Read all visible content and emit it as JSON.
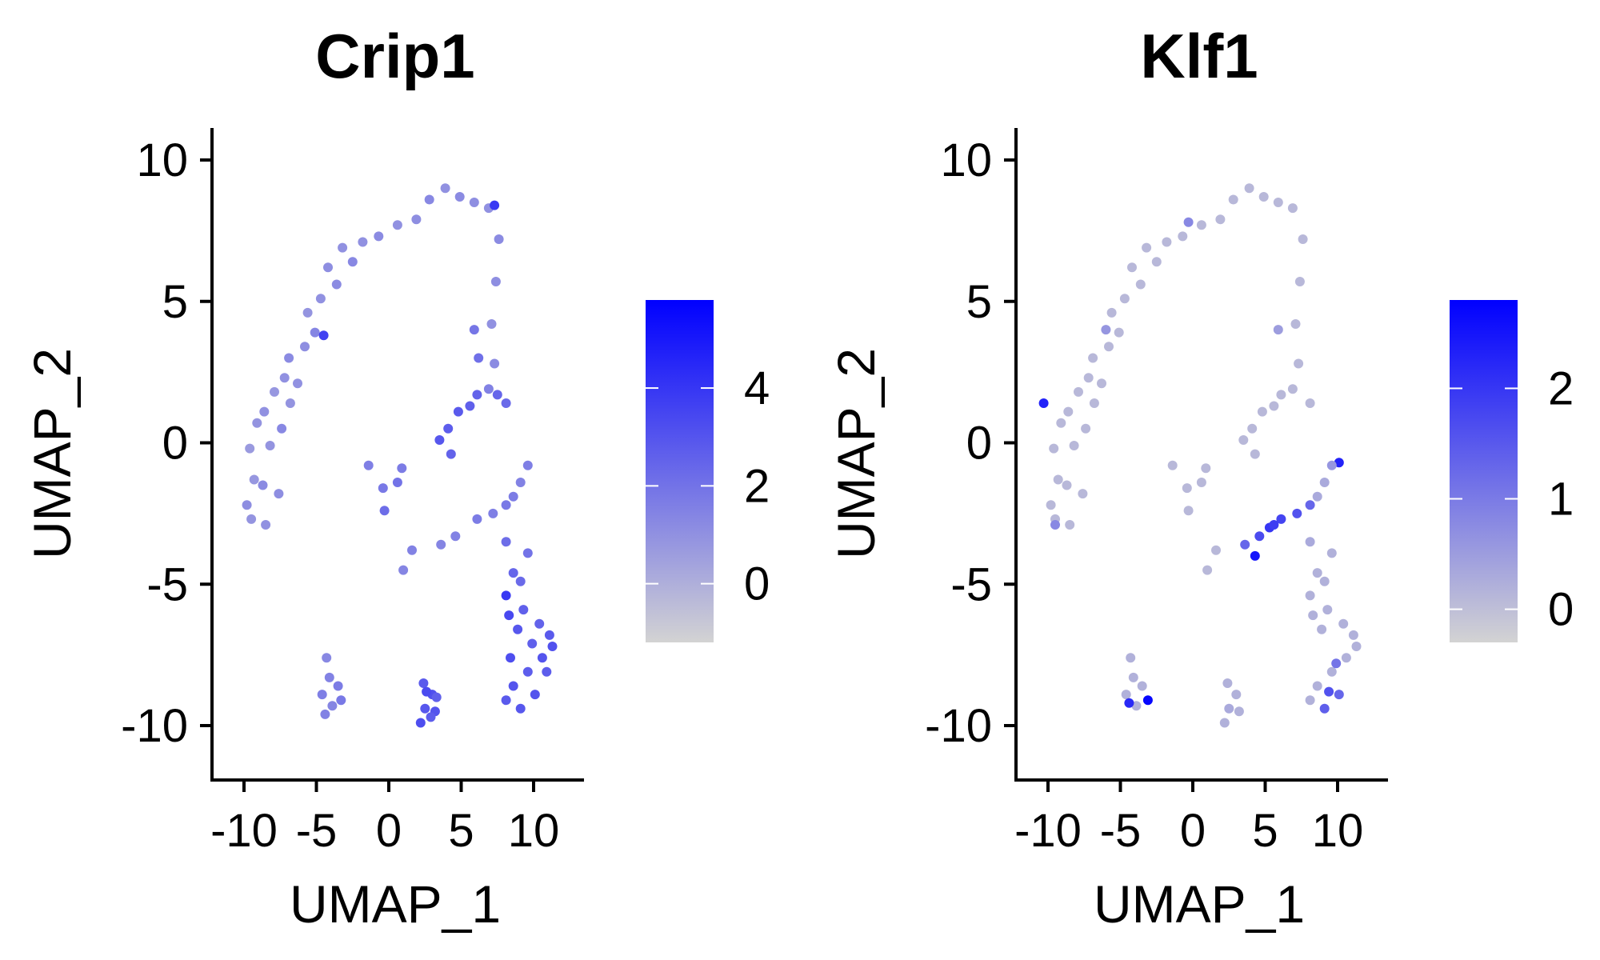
{
  "chart_data": [
    {
      "type": "scatter",
      "title": "Crip1",
      "xlabel": "UMAP_1",
      "ylabel": "UMAP_2",
      "xlim": [
        -12,
        13
      ],
      "ylim": [
        -12,
        11
      ],
      "xticks": [
        -10,
        -5,
        0,
        5,
        10
      ],
      "xtick_labels": [
        "-10",
        "-5",
        "0",
        "5",
        "10"
      ],
      "yticks": [
        -10,
        -5,
        0,
        5,
        10
      ],
      "ytick_labels": [
        "-10",
        "-5",
        "0",
        "5",
        "10"
      ],
      "grid": false,
      "legend": "right",
      "colorbar": {
        "low_color": "#d3d3d3",
        "high_color": "#0000ff",
        "range": [
          -1.2,
          5.8
        ],
        "ticks": [
          0,
          2,
          4
        ],
        "tick_labels": [
          "0",
          "2",
          "4"
        ]
      },
      "points": [
        [
          -9.5,
          -2.7,
          0.9
        ],
        [
          -9.8,
          -2.2,
          1.1
        ],
        [
          -9.3,
          -1.3,
          0.8
        ],
        [
          -9.6,
          -0.2,
          0.7
        ],
        [
          -9.1,
          0.7,
          0.9
        ],
        [
          -8.5,
          -2.9,
          1.0
        ],
        [
          -8.7,
          -1.5,
          1.2
        ],
        [
          -8.2,
          -0.1,
          0.9
        ],
        [
          -8.6,
          1.1,
          1.0
        ],
        [
          -7.9,
          1.8,
          0.8
        ],
        [
          -7.6,
          -1.8,
          1.1
        ],
        [
          -7.4,
          0.5,
          1.3
        ],
        [
          -7.2,
          2.3,
          1.0
        ],
        [
          -6.8,
          1.4,
          0.9
        ],
        [
          -6.9,
          3.0,
          1.2
        ],
        [
          -6.3,
          2.1,
          1.0
        ],
        [
          -5.8,
          3.4,
          1.1
        ],
        [
          -5.6,
          4.6,
          0.9
        ],
        [
          -5.1,
          3.9,
          1.4
        ],
        [
          -4.7,
          5.1,
          1.0
        ],
        [
          -4.5,
          3.8,
          3.6
        ],
        [
          -4.2,
          6.2,
          1.1
        ],
        [
          -3.6,
          5.6,
          1.2
        ],
        [
          -3.2,
          6.9,
          1.0
        ],
        [
          -2.5,
          6.4,
          1.3
        ],
        [
          -1.8,
          7.1,
          1.0
        ],
        [
          -0.7,
          7.3,
          1.2
        ],
        [
          0.6,
          7.7,
          1.0
        ],
        [
          1.9,
          7.9,
          1.1
        ],
        [
          2.8,
          8.6,
          1.3
        ],
        [
          3.9,
          9.0,
          1.0
        ],
        [
          4.9,
          8.7,
          1.2
        ],
        [
          5.9,
          8.5,
          1.1
        ],
        [
          6.9,
          8.3,
          1.0
        ],
        [
          7.3,
          8.4,
          3.9
        ],
        [
          7.6,
          7.2,
          1.2
        ],
        [
          7.4,
          5.7,
          1.1
        ],
        [
          7.1,
          4.2,
          1.0
        ],
        [
          7.3,
          2.8,
          1.2
        ],
        [
          6.9,
          1.9,
          1.5
        ],
        [
          5.6,
          1.3,
          2.6
        ],
        [
          4.8,
          1.1,
          2.8
        ],
        [
          6.1,
          1.7,
          2.5
        ],
        [
          4.1,
          0.5,
          2.7
        ],
        [
          3.5,
          0.1,
          2.9
        ],
        [
          4.3,
          -0.4,
          2.5
        ],
        [
          8.1,
          1.4,
          2.3
        ],
        [
          7.5,
          1.7,
          2.4
        ],
        [
          5.9,
          4.0,
          1.9
        ],
        [
          6.2,
          3.0,
          2.1
        ],
        [
          -1.4,
          -0.8,
          1.6
        ],
        [
          -0.4,
          -1.6,
          1.8
        ],
        [
          0.6,
          -1.4,
          2.0
        ],
        [
          -0.3,
          -2.4,
          2.2
        ],
        [
          0.9,
          -0.9,
          1.7
        ],
        [
          4.6,
          -3.3,
          1.5
        ],
        [
          6.1,
          -2.7,
          1.7
        ],
        [
          7.2,
          -2.5,
          1.6
        ],
        [
          3.6,
          -3.6,
          1.4
        ],
        [
          8.1,
          -2.2,
          1.8
        ],
        [
          9.6,
          -0.8,
          1.6
        ],
        [
          9.1,
          -1.4,
          1.5
        ],
        [
          8.6,
          -1.9,
          1.7
        ],
        [
          1.6,
          -3.8,
          1.5
        ],
        [
          1.0,
          -4.5,
          1.4
        ],
        [
          8.6,
          -4.6,
          2.4
        ],
        [
          8.1,
          -5.4,
          3.9
        ],
        [
          8.3,
          -6.1,
          3.4
        ],
        [
          8.9,
          -6.6,
          2.9
        ],
        [
          9.3,
          -5.9,
          2.6
        ],
        [
          10.4,
          -6.4,
          2.5
        ],
        [
          11.1,
          -6.8,
          2.8
        ],
        [
          10.6,
          -7.6,
          3.0
        ],
        [
          11.3,
          -7.2,
          3.1
        ],
        [
          9.6,
          -8.1,
          2.7
        ],
        [
          8.6,
          -8.6,
          3.0
        ],
        [
          8.1,
          -9.1,
          2.8
        ],
        [
          9.1,
          -9.4,
          2.9
        ],
        [
          10.1,
          -8.9,
          3.0
        ],
        [
          8.4,
          -7.6,
          3.2
        ],
        [
          9.1,
          -4.9,
          2.3
        ],
        [
          9.6,
          -3.9,
          2.0
        ],
        [
          8.1,
          -3.5,
          2.2
        ],
        [
          9.9,
          -7.1,
          2.6
        ],
        [
          10.9,
          -8.1,
          2.7
        ],
        [
          -4.3,
          -7.6,
          1.3
        ],
        [
          -4.1,
          -8.3,
          1.5
        ],
        [
          -3.5,
          -8.6,
          1.7
        ],
        [
          -4.6,
          -8.9,
          1.6
        ],
        [
          -3.9,
          -9.3,
          1.4
        ],
        [
          -3.3,
          -9.1,
          1.8
        ],
        [
          -4.4,
          -9.6,
          1.5
        ],
        [
          2.4,
          -8.5,
          2.8
        ],
        [
          3.0,
          -8.9,
          3.1
        ],
        [
          2.5,
          -9.4,
          2.9
        ],
        [
          3.2,
          -9.5,
          3.0
        ],
        [
          2.2,
          -9.9,
          3.2
        ],
        [
          2.9,
          -9.7,
          2.7
        ],
        [
          2.6,
          -8.8,
          3.3
        ],
        [
          3.3,
          -9.0,
          2.6
        ]
      ]
    },
    {
      "type": "scatter",
      "title": "Klf1",
      "xlabel": "UMAP_1",
      "ylabel": "UMAP_2",
      "xlim": [
        -12,
        13
      ],
      "ylim": [
        -12,
        11
      ],
      "xticks": [
        -10,
        -5,
        0,
        5,
        10
      ],
      "xtick_labels": [
        "-10",
        "-5",
        "0",
        "5",
        "10"
      ],
      "yticks": [
        -10,
        -5,
        0,
        5,
        10
      ],
      "ytick_labels": [
        "-10",
        "-5",
        "0",
        "5",
        "10"
      ],
      "grid": false,
      "legend": "right",
      "colorbar": {
        "low_color": "#d3d3d3",
        "high_color": "#0000ff",
        "range": [
          -0.3,
          2.8
        ],
        "ticks": [
          0,
          1,
          2
        ],
        "tick_labels": [
          "0",
          "1",
          "2"
        ]
      },
      "points": [
        [
          -9.5,
          -2.7,
          0.1
        ],
        [
          -9.8,
          -2.2,
          0.1
        ],
        [
          -9.3,
          -1.3,
          0.1
        ],
        [
          -9.6,
          -0.2,
          0.1
        ],
        [
          -9.1,
          0.7,
          0.1
        ],
        [
          -8.5,
          -2.9,
          0.1
        ],
        [
          -8.7,
          -1.5,
          0.1
        ],
        [
          -8.2,
          -0.1,
          0.1
        ],
        [
          -8.6,
          1.1,
          0.1
        ],
        [
          -7.9,
          1.8,
          0.1
        ],
        [
          -7.6,
          -1.8,
          0.1
        ],
        [
          -7.4,
          0.5,
          0.1
        ],
        [
          -7.2,
          2.3,
          0.1
        ],
        [
          -6.8,
          1.4,
          0.1
        ],
        [
          -6.9,
          3.0,
          0.1
        ],
        [
          -6.3,
          2.1,
          0.1
        ],
        [
          -5.8,
          3.4,
          0.1
        ],
        [
          -5.6,
          4.6,
          0.1
        ],
        [
          -5.1,
          3.9,
          0.1
        ],
        [
          -4.7,
          5.1,
          0.1
        ],
        [
          -4.2,
          6.2,
          0.1
        ],
        [
          -3.6,
          5.6,
          0.1
        ],
        [
          -3.2,
          6.9,
          0.1
        ],
        [
          -2.5,
          6.4,
          0.1
        ],
        [
          -1.8,
          7.1,
          0.1
        ],
        [
          -0.7,
          7.3,
          0.1
        ],
        [
          0.6,
          7.7,
          0.1
        ],
        [
          1.9,
          7.9,
          0.1
        ],
        [
          2.8,
          8.6,
          0.1
        ],
        [
          3.9,
          9.0,
          0.1
        ],
        [
          4.9,
          8.7,
          0.1
        ],
        [
          5.9,
          8.5,
          0.1
        ],
        [
          6.9,
          8.3,
          0.1
        ],
        [
          7.6,
          7.2,
          0.1
        ],
        [
          7.4,
          5.7,
          0.1
        ],
        [
          7.1,
          4.2,
          0.1
        ],
        [
          7.3,
          2.8,
          0.1
        ],
        [
          6.9,
          1.9,
          0.1
        ],
        [
          5.6,
          1.3,
          0.1
        ],
        [
          4.8,
          1.1,
          0.1
        ],
        [
          6.1,
          1.7,
          0.1
        ],
        [
          4.1,
          0.5,
          0.1
        ],
        [
          3.5,
          0.1,
          0.1
        ],
        [
          4.3,
          -0.4,
          0.1
        ],
        [
          8.1,
          1.4,
          0.1
        ],
        [
          5.9,
          4.0,
          0.5
        ],
        [
          -10.3,
          1.4,
          2.3
        ],
        [
          -9.5,
          -2.9,
          0.8
        ],
        [
          -0.3,
          7.8,
          0.8
        ],
        [
          -6.0,
          4.0,
          0.6
        ],
        [
          -1.4,
          -0.8,
          0.1
        ],
        [
          -0.4,
          -1.6,
          0.1
        ],
        [
          0.6,
          -1.4,
          0.1
        ],
        [
          -0.3,
          -2.4,
          0.1
        ],
        [
          0.9,
          -0.9,
          0.1
        ],
        [
          4.6,
          -3.3,
          1.7
        ],
        [
          5.3,
          -3.0,
          2.0
        ],
        [
          6.1,
          -2.7,
          1.8
        ],
        [
          7.2,
          -2.5,
          1.6
        ],
        [
          3.6,
          -3.6,
          1.3
        ],
        [
          4.3,
          -4.0,
          2.5
        ],
        [
          5.6,
          -2.9,
          1.9
        ],
        [
          8.1,
          -2.2,
          1.3
        ],
        [
          10.1,
          -0.7,
          2.3
        ],
        [
          9.6,
          -0.8,
          0.6
        ],
        [
          9.1,
          -1.4,
          0.3
        ],
        [
          8.6,
          -1.9,
          0.3
        ],
        [
          1.6,
          -3.8,
          0.1
        ],
        [
          1.0,
          -4.5,
          0.1
        ],
        [
          8.6,
          -4.6,
          0.2
        ],
        [
          8.1,
          -5.4,
          0.2
        ],
        [
          8.3,
          -6.1,
          0.2
        ],
        [
          8.9,
          -6.6,
          0.2
        ],
        [
          9.3,
          -5.9,
          0.2
        ],
        [
          10.4,
          -6.4,
          0.2
        ],
        [
          11.1,
          -6.8,
          0.2
        ],
        [
          10.6,
          -7.6,
          0.2
        ],
        [
          11.3,
          -7.2,
          0.2
        ],
        [
          9.6,
          -8.1,
          0.2
        ],
        [
          8.6,
          -8.6,
          0.2
        ],
        [
          8.1,
          -9.1,
          0.2
        ],
        [
          9.1,
          -9.4,
          1.4
        ],
        [
          10.1,
          -8.9,
          1.3
        ],
        [
          9.4,
          -8.8,
          1.6
        ],
        [
          9.9,
          -7.8,
          1.1
        ],
        [
          9.1,
          -4.9,
          0.2
        ],
        [
          9.6,
          -3.9,
          0.2
        ],
        [
          8.1,
          -3.5,
          0.3
        ],
        [
          -4.3,
          -7.6,
          0.2
        ],
        [
          -4.1,
          -8.3,
          0.2
        ],
        [
          -3.5,
          -8.6,
          0.2
        ],
        [
          -4.6,
          -8.9,
          0.2
        ],
        [
          -3.9,
          -9.3,
          0.2
        ],
        [
          -4.4,
          -9.2,
          2.2
        ],
        [
          -3.1,
          -9.1,
          2.7
        ],
        [
          2.4,
          -8.5,
          0.2
        ],
        [
          3.0,
          -8.9,
          0.2
        ],
        [
          2.5,
          -9.4,
          0.3
        ],
        [
          3.2,
          -9.5,
          0.2
        ],
        [
          2.2,
          -9.9,
          0.2
        ]
      ]
    }
  ]
}
